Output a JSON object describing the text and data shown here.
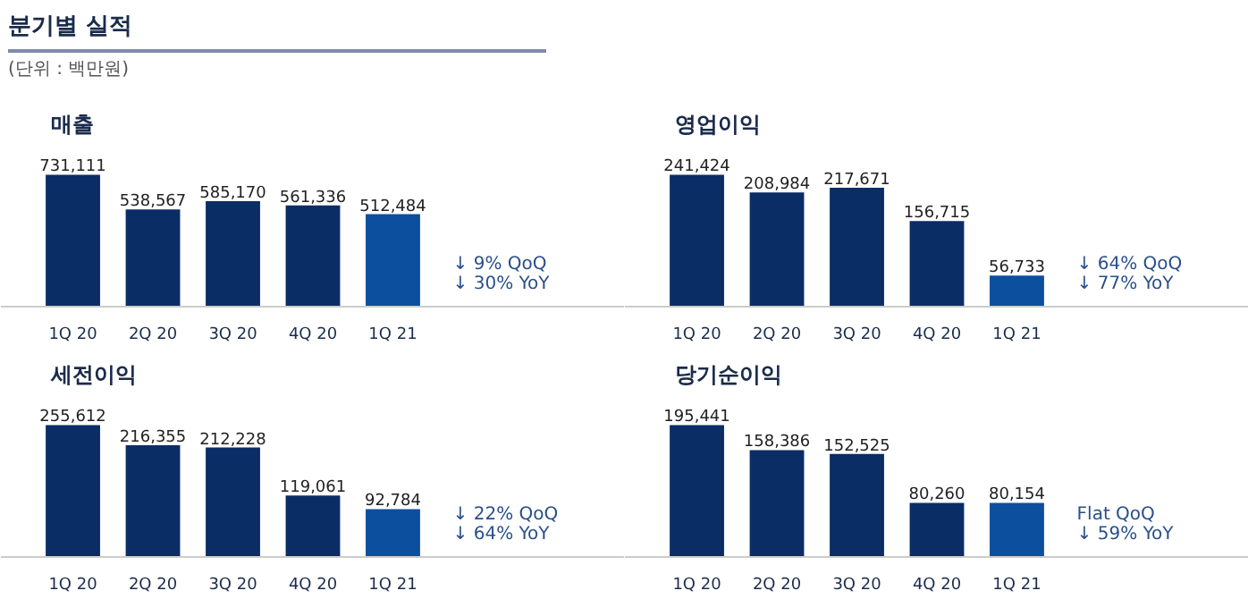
{
  "chart_data": [
    {
      "type": "other",
      "title": "분기별 실적",
      "annotations": [
        "(단위 : 백만원)"
      ]
    },
    {
      "type": "bar",
      "title": "매출",
      "categories": [
        "1Q 20",
        "2Q 20",
        "3Q 20",
        "4Q 20",
        "1Q 21"
      ],
      "values": [
        731111,
        538567,
        585170,
        561336,
        512484
      ],
      "colors": [
        "#0b2d66",
        "#0b2d66",
        "#0b2d66",
        "#0b2d66",
        "#0c4f9e"
      ],
      "value_labels": [
        "731,111",
        "538,567",
        "585,170",
        "561,336",
        "512,484"
      ],
      "annotations": [
        "↓ 9% QoQ",
        "↓ 30% YoY"
      ]
    },
    {
      "type": "bar",
      "title": "영업이익",
      "categories": [
        "1Q 20",
        "2Q 20",
        "3Q 20",
        "4Q 20",
        "1Q 21"
      ],
      "values": [
        241424,
        208984,
        217671,
        156715,
        56733
      ],
      "colors": [
        "#0b2d66",
        "#0b2d66",
        "#0b2d66",
        "#0b2d66",
        "#0c4f9e"
      ],
      "value_labels": [
        "241,424",
        "208,984",
        "217,671",
        "156,715",
        "56,733"
      ],
      "annotations": [
        "↓ 64% QoQ",
        "↓ 77% YoY"
      ]
    },
    {
      "type": "bar",
      "title": "세전이익",
      "categories": [
        "1Q 20",
        "2Q 20",
        "3Q 20",
        "4Q 20",
        "1Q 21"
      ],
      "values": [
        255612,
        216355,
        212228,
        119061,
        92784
      ],
      "colors": [
        "#0b2d66",
        "#0b2d66",
        "#0b2d66",
        "#0b2d66",
        "#0c4f9e"
      ],
      "value_labels": [
        "255,612",
        "216,355",
        "212,228",
        "119,061",
        "92,784"
      ],
      "annotations": [
        "↓ 22% QoQ",
        "↓ 64% YoY"
      ]
    },
    {
      "type": "bar",
      "title": "당기순이익",
      "categories": [
        "1Q 20",
        "2Q 20",
        "3Q 20",
        "4Q 20",
        "1Q 21"
      ],
      "values": [
        195441,
        158386,
        152525,
        80260,
        80154
      ],
      "colors": [
        "#0b2d66",
        "#0b2d66",
        "#0b2d66",
        "#0b2d66",
        "#0c4f9e"
      ],
      "value_labels": [
        "195,441",
        "158,386",
        "152,525",
        "80,260",
        "80,154"
      ],
      "annotations": [
        "Flat QoQ",
        "↓ 59% YoY"
      ]
    }
  ]
}
